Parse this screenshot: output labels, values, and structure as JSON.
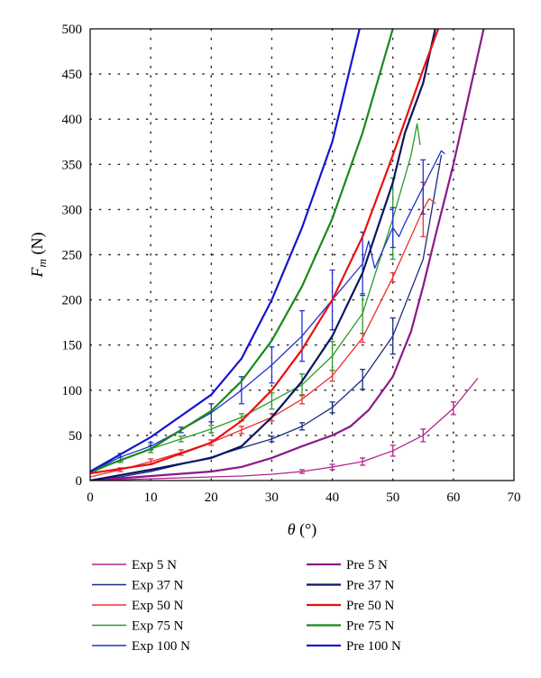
{
  "chart_data": {
    "type": "line",
    "title": "",
    "xlabel": "θ (°)",
    "ylabel": "F_m (N)",
    "xlim": [
      0,
      70
    ],
    "ylim": [
      0,
      500
    ],
    "xticks": [
      "0",
      "10",
      "20",
      "30",
      "40",
      "50",
      "60",
      "70"
    ],
    "yticks": [
      "0",
      "50",
      "100",
      "150",
      "200",
      "250",
      "300",
      "350",
      "400",
      "450",
      "500"
    ],
    "grid": "dotted",
    "legend_position": "bottom",
    "series": [
      {
        "name": "Exp 5 N",
        "kind": "exp",
        "color": "#b0258f",
        "x": [
          0,
          5,
          10,
          15,
          20,
          25,
          30,
          35,
          40,
          45,
          50,
          55,
          60,
          64
        ],
        "y": [
          0,
          1,
          2,
          3,
          4,
          5,
          7,
          10,
          15,
          21,
          33,
          50,
          80,
          113
        ],
        "err": [
          0,
          0,
          0,
          0,
          0,
          0,
          0,
          2,
          3,
          4,
          6,
          7,
          7,
          0
        ]
      },
      {
        "name": "Exp 37 N",
        "kind": "exp",
        "color": "#1a2c80",
        "x": [
          0,
          5,
          10,
          15,
          20,
          25,
          30,
          35,
          40,
          45,
          50,
          55,
          58
        ],
        "y": [
          0,
          4,
          10,
          18,
          26,
          36,
          46,
          60,
          81,
          112,
          160,
          245,
          360
        ],
        "err": [
          0,
          0,
          0,
          0,
          0,
          0,
          3,
          4,
          6,
          11,
          20,
          0,
          0
        ]
      },
      {
        "name": "Exp 50 N",
        "kind": "exp",
        "color": "#ef3030",
        "x": [
          0,
          5,
          10,
          15,
          20,
          25,
          30,
          35,
          40,
          45,
          50,
          55,
          56,
          57
        ],
        "y": [
          4,
          12,
          21,
          31,
          42,
          56,
          70,
          90,
          116,
          158,
          225,
          300,
          312,
          307
        ],
        "err": [
          0,
          2,
          3,
          3,
          3,
          4,
          4,
          5,
          6,
          5,
          5,
          30,
          0,
          0
        ]
      },
      {
        "name": "Exp 75 N",
        "kind": "exp",
        "color": "#2a9a2a",
        "x": [
          0,
          5,
          10,
          15,
          20,
          25,
          30,
          35,
          40,
          45,
          50,
          53,
          54,
          54.5
        ],
        "y": [
          8,
          23,
          35,
          46,
          57,
          70,
          88,
          106,
          138,
          185,
          290,
          360,
          395,
          372
        ],
        "err": [
          0,
          3,
          4,
          3,
          4,
          4,
          9,
          12,
          16,
          22,
          45,
          0,
          0,
          0
        ]
      },
      {
        "name": "Exp 100 N",
        "kind": "exp",
        "color": "#2233cc",
        "x": [
          0,
          5,
          10,
          15,
          20,
          25,
          30,
          35,
          40,
          45,
          46,
          47,
          48,
          50,
          51,
          52,
          55,
          58,
          58.5
        ],
        "y": [
          10,
          26,
          38,
          56,
          75,
          100,
          128,
          160,
          200,
          240,
          265,
          235,
          250,
          280,
          270,
          285,
          325,
          365,
          362
        ],
        "err": [
          0,
          4,
          4,
          3,
          10,
          15,
          20,
          28,
          33,
          35,
          0,
          0,
          0,
          22,
          0,
          0,
          30,
          0,
          0
        ]
      },
      {
        "name": "Pre 5 N",
        "kind": "pre",
        "color": "#8a1a8a",
        "x": [
          0,
          10,
          20,
          25,
          30,
          35,
          40,
          43,
          46,
          50,
          53,
          55,
          57,
          60,
          62,
          65
        ],
        "y": [
          0,
          5,
          10,
          15,
          25,
          38,
          50,
          60,
          78,
          115,
          165,
          215,
          270,
          350,
          410,
          500
        ]
      },
      {
        "name": "Pre 37 N",
        "kind": "pre",
        "color": "#0b1560",
        "x": [
          0,
          10,
          20,
          25,
          30,
          35,
          40,
          45,
          50,
          52,
          55,
          57
        ],
        "y": [
          0,
          12,
          25,
          38,
          70,
          110,
          160,
          230,
          330,
          385,
          440,
          500
        ]
      },
      {
        "name": "Pre 50 N",
        "kind": "pre",
        "color": "#e81010",
        "x": [
          0,
          10,
          20,
          25,
          30,
          35,
          40,
          45,
          50,
          55,
          57.5
        ],
        "y": [
          8,
          18,
          42,
          66,
          100,
          145,
          200,
          270,
          360,
          455,
          500
        ]
      },
      {
        "name": "Pre 75 N",
        "kind": "pre",
        "color": "#1a8a1a",
        "x": [
          0,
          10,
          20,
          25,
          30,
          35,
          40,
          45,
          50
        ],
        "y": [
          10,
          35,
          77,
          110,
          155,
          215,
          290,
          385,
          500
        ]
      },
      {
        "name": "Pre 100 N",
        "kind": "pre",
        "color": "#1515cc",
        "x": [
          0,
          10,
          20,
          25,
          30,
          35,
          40,
          44.5
        ],
        "y": [
          10,
          48,
          95,
          135,
          200,
          280,
          375,
          500
        ]
      }
    ]
  }
}
